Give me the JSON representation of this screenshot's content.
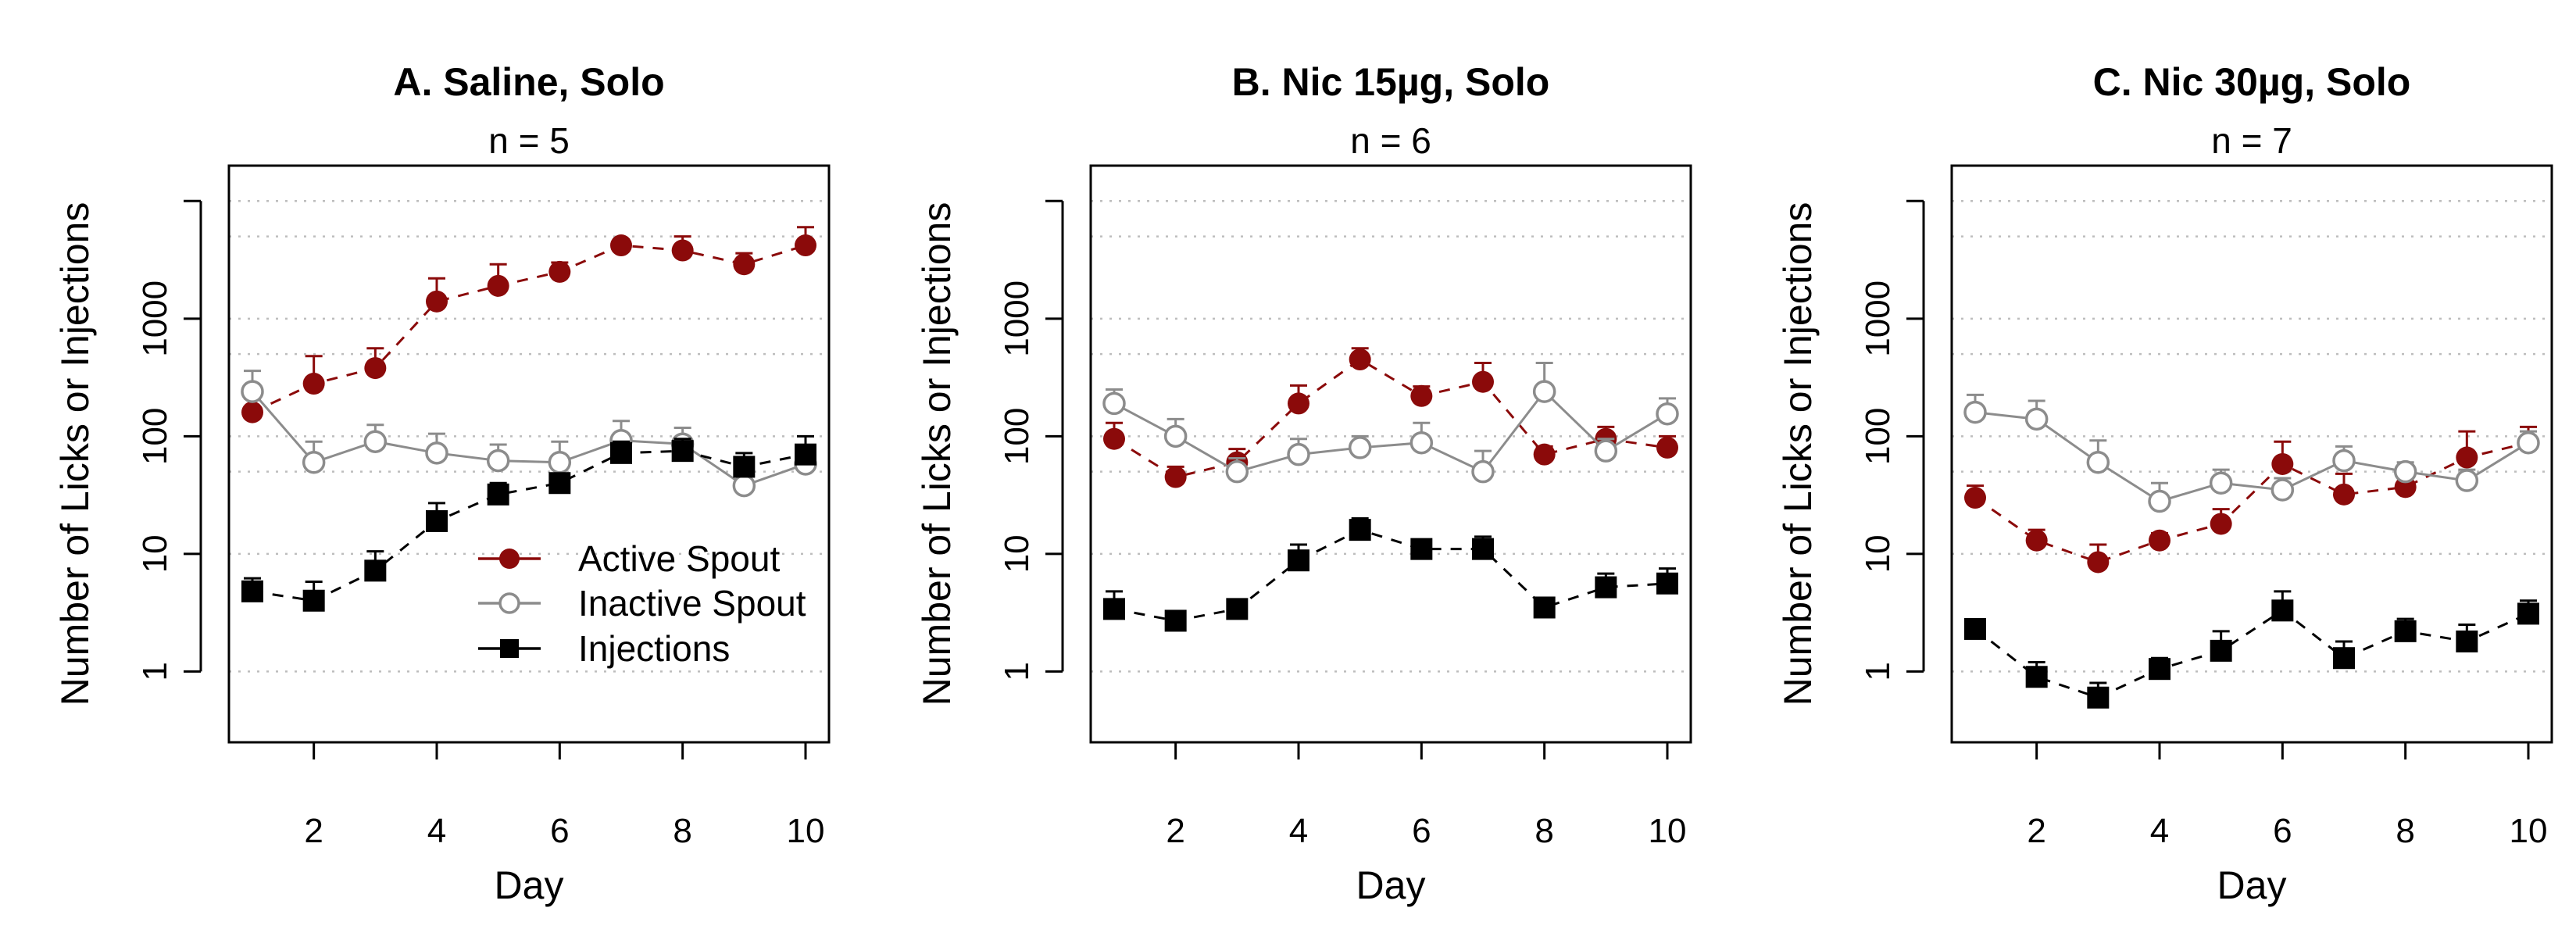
{
  "legend": {
    "placement": "inside-bottom-right of panel A",
    "entries": [
      {
        "label": "Active Spout",
        "series": "active"
      },
      {
        "label": "Inactive Spout",
        "series": "inactive"
      },
      {
        "label": "Injections",
        "series": "injections"
      }
    ]
  },
  "style": {
    "active_color": "#8b0a0a",
    "inactive_color": "#8c8c8c",
    "injections_color": "#000000",
    "grid_color": "#bdbdbd"
  },
  "chart_data": [
    {
      "type": "line",
      "title": "A. Saline, Solo",
      "subtitle": "n = 5",
      "xlabel": "Day",
      "ylabel": "Number of Licks or Injections",
      "x": [
        1,
        2,
        3,
        4,
        5,
        6,
        7,
        8,
        9,
        10
      ],
      "xticks": [
        "2",
        "4",
        "6",
        "8",
        "10"
      ],
      "yticks": [
        "1",
        "10",
        "100",
        "1000"
      ],
      "yscale": "log",
      "ylim": [
        0.25,
        20000
      ],
      "grid": "horizontal dotted",
      "series": [
        {
          "name": "Active Spout",
          "marker": "filled circle",
          "line": "dashed",
          "values": [
            160,
            280,
            380,
            1400,
            1900,
            2500,
            4200,
            3800,
            2900,
            4200
          ],
          "err_hi": [
            210,
            480,
            560,
            2200,
            2900,
            3000,
            4700,
            5000,
            3600,
            6000
          ]
        },
        {
          "name": "Inactive Spout",
          "marker": "open circle",
          "line": "solid",
          "values": [
            240,
            60,
            90,
            72,
            62,
            60,
            92,
            86,
            38,
            58
          ],
          "err_hi": [
            360,
            90,
            125,
            105,
            85,
            90,
            135,
            118,
            52,
            75
          ]
        },
        {
          "name": "Injections",
          "marker": "filled square",
          "line": "dashed",
          "values": [
            4.8,
            4.0,
            7.2,
            19,
            32,
            40,
            72,
            75,
            55,
            70
          ],
          "err_hi": [
            6.2,
            5.8,
            10.5,
            27,
            40,
            48,
            90,
            95,
            72,
            100
          ]
        }
      ]
    },
    {
      "type": "line",
      "title": "B. Nic 15µg, Solo",
      "subtitle": "n = 6",
      "xlabel": "Day",
      "ylabel": "Number of Licks or Injections",
      "x": [
        1,
        2,
        3,
        4,
        5,
        6,
        7,
        8,
        9,
        10
      ],
      "xticks": [
        "2",
        "4",
        "6",
        "8",
        "10"
      ],
      "yticks": [
        "1",
        "10",
        "100",
        "1000"
      ],
      "yscale": "log",
      "ylim": [
        0.25,
        20000
      ],
      "grid": "horizontal dotted",
      "series": [
        {
          "name": "Active Spout",
          "marker": "filled circle",
          "line": "dashed",
          "values": [
            95,
            45,
            60,
            190,
            450,
            220,
            290,
            70,
            95,
            80
          ],
          "err_hi": [
            130,
            55,
            78,
            270,
            560,
            265,
            420,
            82,
            120,
            100
          ]
        },
        {
          "name": "Inactive Spout",
          "marker": "open circle",
          "line": "solid",
          "values": [
            190,
            100,
            50,
            70,
            80,
            88,
            50,
            240,
            75,
            155
          ],
          "err_hi": [
            250,
            140,
            65,
            95,
            100,
            130,
            75,
            420,
            95,
            210
          ]
        },
        {
          "name": "Injections",
          "marker": "filled square",
          "line": "dashed",
          "values": [
            3.4,
            2.7,
            3.4,
            8.8,
            16,
            11,
            11,
            3.5,
            5.2,
            5.6
          ],
          "err_hi": [
            4.8,
            3.2,
            4.0,
            12,
            20,
            13,
            14,
            4.0,
            6.8,
            7.5
          ]
        }
      ]
    },
    {
      "type": "line",
      "title": "C. Nic 30µg, Solo",
      "subtitle": "n = 7",
      "xlabel": "Day",
      "ylabel": "Number of Licks or Injections",
      "x": [
        1,
        2,
        3,
        4,
        5,
        6,
        7,
        8,
        9,
        10
      ],
      "xticks": [
        "2",
        "4",
        "6",
        "8",
        "10"
      ],
      "yticks": [
        "1",
        "10",
        "100",
        "1000"
      ],
      "yscale": "log",
      "ylim": [
        0.25,
        20000
      ],
      "grid": "horizontal dotted",
      "series": [
        {
          "name": "Active Spout",
          "marker": "filled circle",
          "line": "dashed",
          "values": [
            30,
            13,
            8.5,
            13,
            18,
            58,
            32,
            37,
            66,
            88
          ],
          "err_hi": [
            38,
            16,
            12,
            15,
            24,
            90,
            48,
            45,
            110,
            120
          ]
        },
        {
          "name": "Inactive Spout",
          "marker": "open circle",
          "line": "solid",
          "values": [
            160,
            140,
            60,
            28,
            40,
            35,
            62,
            50,
            42,
            88
          ],
          "err_hi": [
            225,
            200,
            92,
            40,
            52,
            44,
            82,
            60,
            52,
            110
          ]
        },
        {
          "name": "Injections",
          "marker": "filled square",
          "line": "dashed",
          "values": [
            2.3,
            0.9,
            0.6,
            1.05,
            1.5,
            3.3,
            1.3,
            2.2,
            1.8,
            3.1
          ],
          "err_hi": [
            2.7,
            1.2,
            0.8,
            1.3,
            2.2,
            4.8,
            1.8,
            2.8,
            2.5,
            4.0
          ]
        }
      ]
    }
  ]
}
